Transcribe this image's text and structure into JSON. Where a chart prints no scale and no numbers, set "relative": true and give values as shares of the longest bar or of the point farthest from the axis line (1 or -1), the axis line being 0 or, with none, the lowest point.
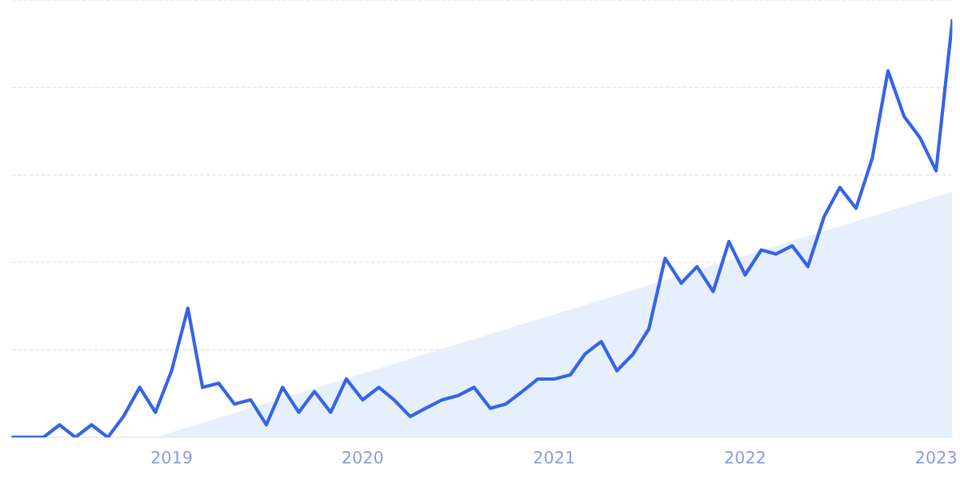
{
  "chart_data": {
    "type": "line",
    "relative": true,
    "grid": "y",
    "x": [
      "2018-03",
      "2018-04",
      "2018-05",
      "2018-06",
      "2018-07",
      "2018-08",
      "2018-09",
      "2018-10",
      "2018-11",
      "2018-12",
      "2019-01",
      "2019-02",
      "2019-03",
      "2019-04",
      "2019-05",
      "2019-06",
      "2019-07",
      "2019-08",
      "2019-09",
      "2019-10",
      "2019-11",
      "2019-12",
      "2020-01",
      "2020-02",
      "2020-03",
      "2020-04",
      "2020-05",
      "2020-06",
      "2020-07",
      "2020-08",
      "2020-09",
      "2020-10",
      "2020-11",
      "2020-12",
      "2021-01",
      "2021-02",
      "2021-03",
      "2021-04",
      "2021-05",
      "2021-06",
      "2021-07",
      "2021-08",
      "2021-09",
      "2021-10",
      "2021-11",
      "2021-12",
      "2022-01",
      "2022-02",
      "2022-03",
      "2022-04",
      "2022-05",
      "2022-06",
      "2022-07",
      "2022-08",
      "2022-09",
      "2022-10",
      "2022-11",
      "2022-12",
      "2023-01",
      "2023-02"
    ],
    "xlim": [
      "2018-03",
      "2023-02"
    ],
    "xticks": [
      "2019",
      "2020",
      "2021",
      "2022",
      "2023"
    ],
    "series": [
      {
        "type": "area",
        "color": "#e6effc",
        "x": [
          "2018-12",
          "2023-02"
        ],
        "values": [
          0,
          0.59
        ]
      },
      {
        "color": "#3563e9",
        "values": [
          0,
          0,
          0,
          0.03,
          0,
          0.03,
          0,
          0.05,
          0.12,
          0.06,
          0.16,
          0.31,
          0.12,
          0.13,
          0.08,
          0.09,
          0.03,
          0.12,
          0.06,
          0.11,
          0.06,
          0.14,
          0.09,
          0.12,
          0.09,
          0.05,
          0.07,
          0.09,
          0.1,
          0.12,
          0.07,
          0.08,
          0.11,
          0.14,
          0.14,
          0.15,
          0.2,
          0.23,
          0.16,
          0.2,
          0.26,
          0.43,
          0.37,
          0.41,
          0.35,
          0.47,
          0.39,
          0.45,
          0.44,
          0.46,
          0.41,
          0.53,
          0.6,
          0.55,
          0.67,
          0.88,
          0.77,
          0.72,
          0.64,
          1
        ]
      }
    ]
  }
}
